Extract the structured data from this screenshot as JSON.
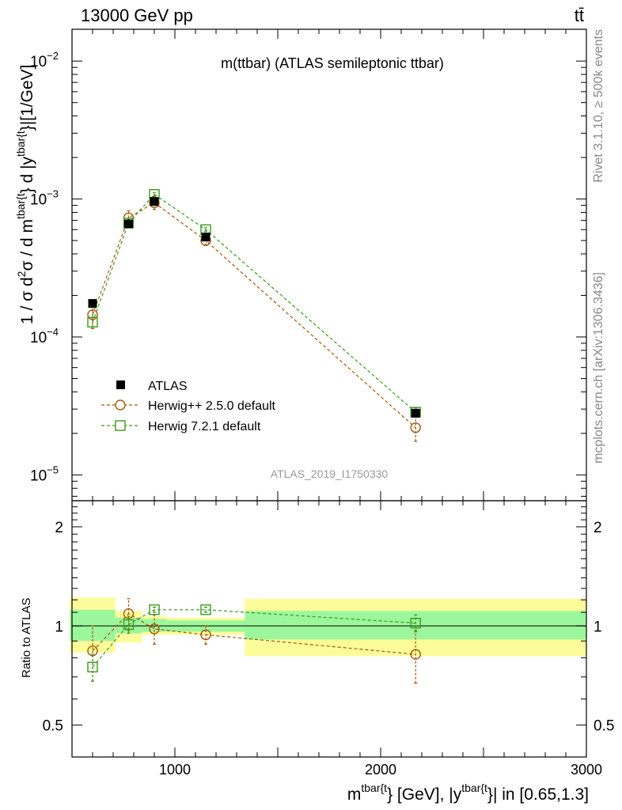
{
  "header": {
    "energy_label": "13000 GeV pp",
    "process_label": "tt̄"
  },
  "side_labels": {
    "rivet": "Rivet 3.1.10, ≥ 500k events",
    "source": "mcplots.cern.ch [arXiv:1306.3436]"
  },
  "chart_data": {
    "type": "scatter",
    "title": "m(ttbar) (ATLAS semileptonic ttbar)",
    "analysis_id": "ATLAS_2019_I1750330",
    "yscale": "log",
    "xlim": [
      500,
      3000
    ],
    "ylim_main": [
      6.5e-06,
      0.017
    ],
    "ylim_ratio": [
      0.4,
      2.4
    ],
    "ylabel_main": {
      "pre": "1 / σ d",
      "sup1": "2",
      "mid1": "σ /  d m",
      "sup2": "tbar{t",
      "mid2": "} d |y",
      "sup3": "tbar{t",
      "post": "}|[1/GeV]"
    },
    "ylabel_ratio": "Ratio to ATLAS",
    "xlabel": {
      "pre": "m",
      "sup1": "tbar{t",
      "mid": "} [GeV], |y",
      "sup2": "tbar{t",
      "post": "}| in [0.65,1.3]"
    },
    "x_ticks": [
      {
        "value": 1000,
        "label": "1000"
      },
      {
        "value": 2000,
        "label": "2000"
      },
      {
        "value": 3000,
        "label": "3000"
      }
    ],
    "y_ticks_main": [
      {
        "value": 0.01,
        "base": "10",
        "exp": "−2"
      },
      {
        "value": 0.001,
        "base": "10",
        "exp": "−3"
      },
      {
        "value": 0.0001,
        "base": "10",
        "exp": "−4"
      },
      {
        "value": 1e-05,
        "base": "10",
        "exp": "−5"
      }
    ],
    "y_ticks_ratio": [
      {
        "value": 0.5,
        "label": "0.5"
      },
      {
        "value": 1,
        "label": "1"
      },
      {
        "value": 2,
        "label": "2"
      }
    ],
    "bins": [
      {
        "lo": 490,
        "hi": 710
      },
      {
        "lo": 710,
        "hi": 840
      },
      {
        "lo": 840,
        "hi": 960
      },
      {
        "lo": 960,
        "hi": 1340
      },
      {
        "lo": 1340,
        "hi": 3000
      }
    ],
    "ratio_bands": [
      {
        "lo": 490,
        "hi": 710,
        "stat_lo": 0.9,
        "stat_hi": 1.12,
        "tot_lo": 0.83,
        "tot_hi": 1.22
      },
      {
        "lo": 710,
        "hi": 840,
        "stat_lo": 0.95,
        "stat_hi": 1.06,
        "tot_lo": 0.89,
        "tot_hi": 1.11
      },
      {
        "lo": 840,
        "hi": 960,
        "stat_lo": 0.96,
        "stat_hi": 1.05,
        "tot_lo": 0.94,
        "tot_hi": 1.07
      },
      {
        "lo": 960,
        "hi": 1340,
        "stat_lo": 0.96,
        "stat_hi": 1.04,
        "tot_lo": 0.94,
        "tot_hi": 1.06
      },
      {
        "lo": 1340,
        "hi": 3000,
        "stat_lo": 0.91,
        "stat_hi": 1.11,
        "tot_lo": 0.81,
        "tot_hi": 1.21
      }
    ],
    "series": [
      {
        "name": "ATLAS",
        "color": "#000000",
        "marker": "filled-square",
        "x": [
          600,
          775,
          900,
          1150,
          2170
        ],
        "y": [
          0.000175,
          0.00066,
          0.00096,
          0.00053,
          2.8e-05
        ],
        "ratio": [
          1,
          1,
          1,
          1,
          1
        ]
      },
      {
        "name": "Herwig++ 2.5.0 default",
        "color": "#a8560a",
        "marker": "open-circle",
        "x": [
          600,
          775,
          900,
          1150,
          2170
        ],
        "y": [
          0.000145,
          0.00073,
          0.00094,
          0.0005,
          2.2e-05
        ],
        "y_err": [
          3e-05,
          9e-05,
          0.0001,
          4e-05,
          4.5e-06
        ],
        "ratio": [
          0.84,
          1.09,
          0.98,
          0.94,
          0.82
        ],
        "ratio_err": [
          0.16,
          0.12,
          0.1,
          0.06,
          0.15
        ]
      },
      {
        "name": "Herwig 7.2.1 default",
        "color": "#3b9a1a",
        "marker": "open-square",
        "x": [
          600,
          775,
          900,
          1150,
          2170
        ],
        "y": [
          0.000128,
          0.00067,
          0.00108,
          0.0006,
          2.85e-05
        ],
        "y_err": [
          1e-05,
          4e-05,
          3e-05,
          2e-05,
          2e-06
        ],
        "ratio": [
          0.75,
          1.01,
          1.12,
          1.12,
          1.02
        ],
        "ratio_err": [
          0.07,
          0.06,
          0.02,
          0.02,
          0.06
        ]
      }
    ],
    "legend": {
      "position": "lower-left",
      "entries": [
        "ATLAS",
        "Herwig++ 2.5.0 default",
        "Herwig 7.2.1 default"
      ]
    },
    "band_colors": {
      "stat": "#9cf79c",
      "total": "#fcfc9b"
    }
  }
}
